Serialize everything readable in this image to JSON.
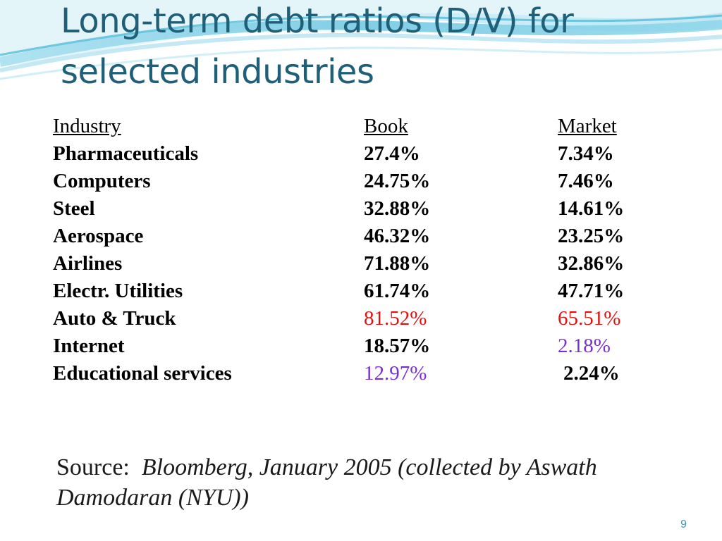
{
  "slide": {
    "title": "Long-term debt ratios (D/V) for selected industries",
    "table": {
      "headers": {
        "industry": "Industry",
        "book": "Book",
        "market": "Market"
      },
      "rows": [
        {
          "industry": "Pharmaceuticals",
          "book": "27.4%",
          "market": "7.34%"
        },
        {
          "industry": "Computers",
          "book": "24.75%",
          "market": "7.46%"
        },
        {
          "industry": "Steel",
          "book": "32.88%",
          "market": "14.61%"
        },
        {
          "industry": "Aerospace",
          "book": "46.32%",
          "market": "23.25%"
        },
        {
          "industry": "Airlines",
          "book": "71.88%",
          "market": "32.86%"
        },
        {
          "industry": "Electr. Utilities",
          "book": "61.74%",
          "market": "47.71%"
        },
        {
          "industry": "Auto & Truck",
          "book": "81.52%",
          "market": "65.51%"
        },
        {
          "industry": "Internet",
          "book": "18.57%",
          "market": "2.18%"
        },
        {
          "industry": "Educational services",
          "book": "12.97%",
          "market": "2.24%"
        }
      ]
    },
    "source": {
      "label": "Source:",
      "text": "Bloomberg, January 2005 (collected by Aswath Damodaran (NYU))"
    },
    "page_number": "9"
  },
  "colors": {
    "title": "#1f5f78",
    "highlight_red": "#e3100f",
    "highlight_purple": "#7a2fd6",
    "wave_light": "#d6f0f7",
    "wave_mid": "#8fd3e8",
    "wave_dark": "#3fb0d4"
  }
}
